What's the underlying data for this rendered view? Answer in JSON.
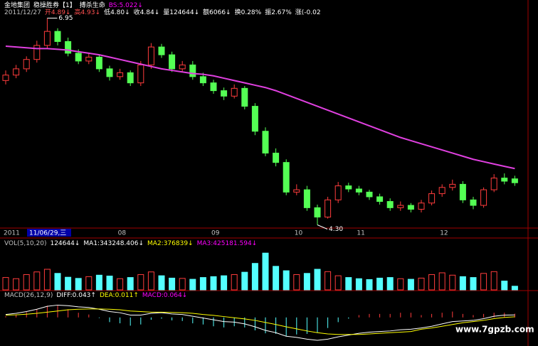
{
  "header": {
    "line1": [
      {
        "text": "金地集团",
        "color": "#ffffff"
      },
      {
        "text": "稳操胜券【1】",
        "color": "#ffffff"
      },
      {
        "text": "搏杀生命",
        "color": "#ffffff"
      },
      {
        "text": "BS:5.022↓",
        "color": "#ff00ff"
      }
    ],
    "line2": [
      {
        "text": "2011/12/27",
        "color": "#c0c0c0"
      },
      {
        "text": "开4.89↓",
        "color": "#ff5050"
      },
      {
        "text": "高4.93↓",
        "color": "#ff5050"
      },
      {
        "text": "低4.80↓",
        "color": "#ffffff"
      },
      {
        "text": "收4.84↓",
        "color": "#ffffff"
      },
      {
        "text": "量124644↓",
        "color": "#ffffff"
      },
      {
        "text": "额6066↓",
        "color": "#ffffff"
      },
      {
        "text": "换0.28%",
        "color": "#ffffff"
      },
      {
        "text": "振2.67%",
        "color": "#ffffff"
      },
      {
        "text": "涨(-0.02",
        "color": "#ffffff"
      }
    ]
  },
  "chart_data": {
    "type": "candlestick",
    "categories": [
      "2011",
      null,
      null,
      null,
      null,
      null,
      null,
      null,
      null,
      null,
      null,
      "08",
      null,
      null,
      null,
      null,
      null,
      null,
      null,
      null,
      "09",
      null,
      null,
      null,
      null,
      null,
      null,
      null,
      "10",
      null,
      null,
      null,
      null,
      null,
      "11",
      null,
      null,
      null,
      null,
      null,
      null,
      null,
      "12",
      null,
      null,
      null,
      null,
      null,
      null,
      null
    ],
    "cursor_date": "11/06/29,三",
    "ylim": [
      4.25,
      7.0
    ],
    "open": [
      6.15,
      6.22,
      6.3,
      6.42,
      6.6,
      6.78,
      6.65,
      6.5,
      6.4,
      6.45,
      6.3,
      6.2,
      6.25,
      6.12,
      6.35,
      6.58,
      6.48,
      6.3,
      6.35,
      6.2,
      6.12,
      6.02,
      5.95,
      6.05,
      5.82,
      5.5,
      5.22,
      5.1,
      4.72,
      4.75,
      4.52,
      4.4,
      4.62,
      4.8,
      4.76,
      4.72,
      4.66,
      4.6,
      4.52,
      4.55,
      4.5,
      4.58,
      4.7,
      4.78,
      4.82,
      4.62,
      4.55,
      4.75,
      4.9,
      4.89
    ],
    "high": [
      6.28,
      6.35,
      6.46,
      6.66,
      6.95,
      6.82,
      6.7,
      6.55,
      6.5,
      6.48,
      6.34,
      6.3,
      6.28,
      6.4,
      6.63,
      6.62,
      6.52,
      6.4,
      6.4,
      6.25,
      6.16,
      6.06,
      6.1,
      6.08,
      5.86,
      5.55,
      5.28,
      5.14,
      4.82,
      4.8,
      4.56,
      4.66,
      4.85,
      4.84,
      4.8,
      4.75,
      4.7,
      4.64,
      4.6,
      4.58,
      4.62,
      4.74,
      4.82,
      4.88,
      4.86,
      4.66,
      4.78,
      4.95,
      4.96,
      4.93
    ],
    "low": [
      6.1,
      6.18,
      6.26,
      6.38,
      6.56,
      6.6,
      6.46,
      6.36,
      6.36,
      6.26,
      6.15,
      6.16,
      6.08,
      6.08,
      6.3,
      6.44,
      6.26,
      6.26,
      6.16,
      6.08,
      5.98,
      5.9,
      5.92,
      5.78,
      5.45,
      5.18,
      5.05,
      4.68,
      4.68,
      4.48,
      4.3,
      4.38,
      4.58,
      4.72,
      4.68,
      4.62,
      4.56,
      4.48,
      4.48,
      4.46,
      4.46,
      4.55,
      4.66,
      4.74,
      4.58,
      4.5,
      4.52,
      4.72,
      4.82,
      4.8
    ],
    "close": [
      6.22,
      6.3,
      6.42,
      6.6,
      6.78,
      6.65,
      6.5,
      6.4,
      6.45,
      6.3,
      6.2,
      6.25,
      6.12,
      6.35,
      6.58,
      6.48,
      6.3,
      6.35,
      6.2,
      6.12,
      6.02,
      5.95,
      6.05,
      5.82,
      5.5,
      5.22,
      5.1,
      4.72,
      4.75,
      4.52,
      4.4,
      4.62,
      4.8,
      4.76,
      4.72,
      4.66,
      4.6,
      4.52,
      4.55,
      4.5,
      4.58,
      4.7,
      4.78,
      4.82,
      4.62,
      4.55,
      4.75,
      4.9,
      4.86,
      4.84
    ],
    "ma": {
      "color": "#e040e0",
      "values": [
        6.59,
        6.58,
        6.57,
        6.56,
        6.56,
        6.55,
        6.54,
        6.52,
        6.5,
        6.48,
        6.45,
        6.42,
        6.39,
        6.36,
        6.33,
        6.3,
        6.28,
        6.26,
        6.24,
        6.23,
        6.21,
        6.18,
        6.15,
        6.12,
        6.09,
        6.06,
        6.02,
        5.97,
        5.92,
        5.87,
        5.82,
        5.77,
        5.72,
        5.67,
        5.62,
        5.57,
        5.52,
        5.47,
        5.42,
        5.38,
        5.34,
        5.3,
        5.26,
        5.22,
        5.18,
        5.14,
        5.11,
        5.08,
        5.05,
        5.022
      ]
    },
    "annotations": [
      {
        "text": "6.95",
        "index": 4
      },
      {
        "text": "4.30",
        "index": 30
      }
    ],
    "up_color": "#ff3c3c",
    "down_color": "#54ff54",
    "volume": {
      "header": [
        {
          "text": "VOL(5,10,20)",
          "color": "#c0c0c0"
        },
        {
          "text": "124644↓",
          "color": "#ffffff"
        },
        {
          "text": "MA1:343248.406↓",
          "color": "#ffffff"
        },
        {
          "text": "MA2:376839↓",
          "color": "#ffff00"
        },
        {
          "text": "MA3:425181.594↓",
          "color": "#ff00ff"
        }
      ],
      "ylim": [
        0,
        1400000
      ],
      "values": [
        420000,
        380000,
        520000,
        610000,
        700000,
        560000,
        430000,
        390000,
        450000,
        500000,
        470000,
        380000,
        420000,
        520000,
        610000,
        480000,
        400000,
        390000,
        360000,
        420000,
        450000,
        480000,
        520000,
        600000,
        900000,
        1250000,
        800000,
        650000,
        520000,
        560000,
        700000,
        620000,
        480000,
        420000,
        380000,
        350000,
        400000,
        420000,
        380000,
        360000,
        400000,
        520000,
        580000,
        500000,
        450000,
        420000,
        560000,
        620000,
        300000,
        124644
      ],
      "down_color": "#54ffff"
    },
    "macd": {
      "header": [
        {
          "text": "MACD(26,12,9)",
          "color": "#c0c0c0"
        },
        {
          "text": "DIFF:0.043↑",
          "color": "#ffffff"
        },
        {
          "text": "DEA:0.011↑",
          "color": "#ffff00"
        },
        {
          "text": "MACD:0.064↓",
          "color": "#ff00ff"
        }
      ],
      "ylim": [
        -0.45,
        0.3
      ],
      "diff": {
        "color": "#ffffff",
        "values": [
          0.05,
          0.07,
          0.1,
          0.14,
          0.19,
          0.21,
          0.2,
          0.18,
          0.17,
          0.14,
          0.1,
          0.08,
          0.04,
          0.04,
          0.07,
          0.08,
          0.06,
          0.05,
          0.02,
          -0.01,
          -0.04,
          -0.07,
          -0.08,
          -0.11,
          -0.16,
          -0.22,
          -0.26,
          -0.32,
          -0.34,
          -0.37,
          -0.39,
          -0.37,
          -0.33,
          -0.3,
          -0.27,
          -0.25,
          -0.24,
          -0.23,
          -0.21,
          -0.2,
          -0.18,
          -0.15,
          -0.11,
          -0.07,
          -0.06,
          -0.05,
          -0.02,
          0.02,
          0.04,
          0.043
        ]
      },
      "dea": {
        "color": "#ffff00",
        "values": [
          0.04,
          0.045,
          0.055,
          0.07,
          0.09,
          0.11,
          0.13,
          0.14,
          0.145,
          0.145,
          0.14,
          0.13,
          0.11,
          0.1,
          0.09,
          0.09,
          0.085,
          0.08,
          0.07,
          0.05,
          0.035,
          0.015,
          -0.005,
          -0.025,
          -0.05,
          -0.085,
          -0.12,
          -0.16,
          -0.195,
          -0.23,
          -0.26,
          -0.28,
          -0.29,
          -0.29,
          -0.29,
          -0.28,
          -0.27,
          -0.26,
          -0.25,
          -0.24,
          -0.2,
          -0.18,
          -0.15,
          -0.12,
          -0.09,
          -0.07,
          -0.05,
          -0.02,
          0.0,
          0.011
        ]
      },
      "values": [
        0.02,
        0.05,
        0.09,
        0.14,
        0.2,
        0.2,
        0.14,
        0.08,
        0.05,
        -0.01,
        -0.08,
        -0.1,
        -0.14,
        -0.12,
        -0.04,
        -0.02,
        -0.05,
        -0.06,
        -0.1,
        -0.12,
        -0.15,
        -0.17,
        -0.15,
        -0.17,
        -0.22,
        -0.27,
        -0.28,
        -0.32,
        -0.29,
        -0.28,
        -0.26,
        -0.18,
        -0.08,
        -0.02,
        0.04,
        0.06,
        0.06,
        0.06,
        0.08,
        0.08,
        0.04,
        0.06,
        0.08,
        0.1,
        0.06,
        0.04,
        0.06,
        0.08,
        0.08,
        0.064
      ],
      "down_color": "#54ffff"
    }
  },
  "watermark": "www.7gpzb.com"
}
